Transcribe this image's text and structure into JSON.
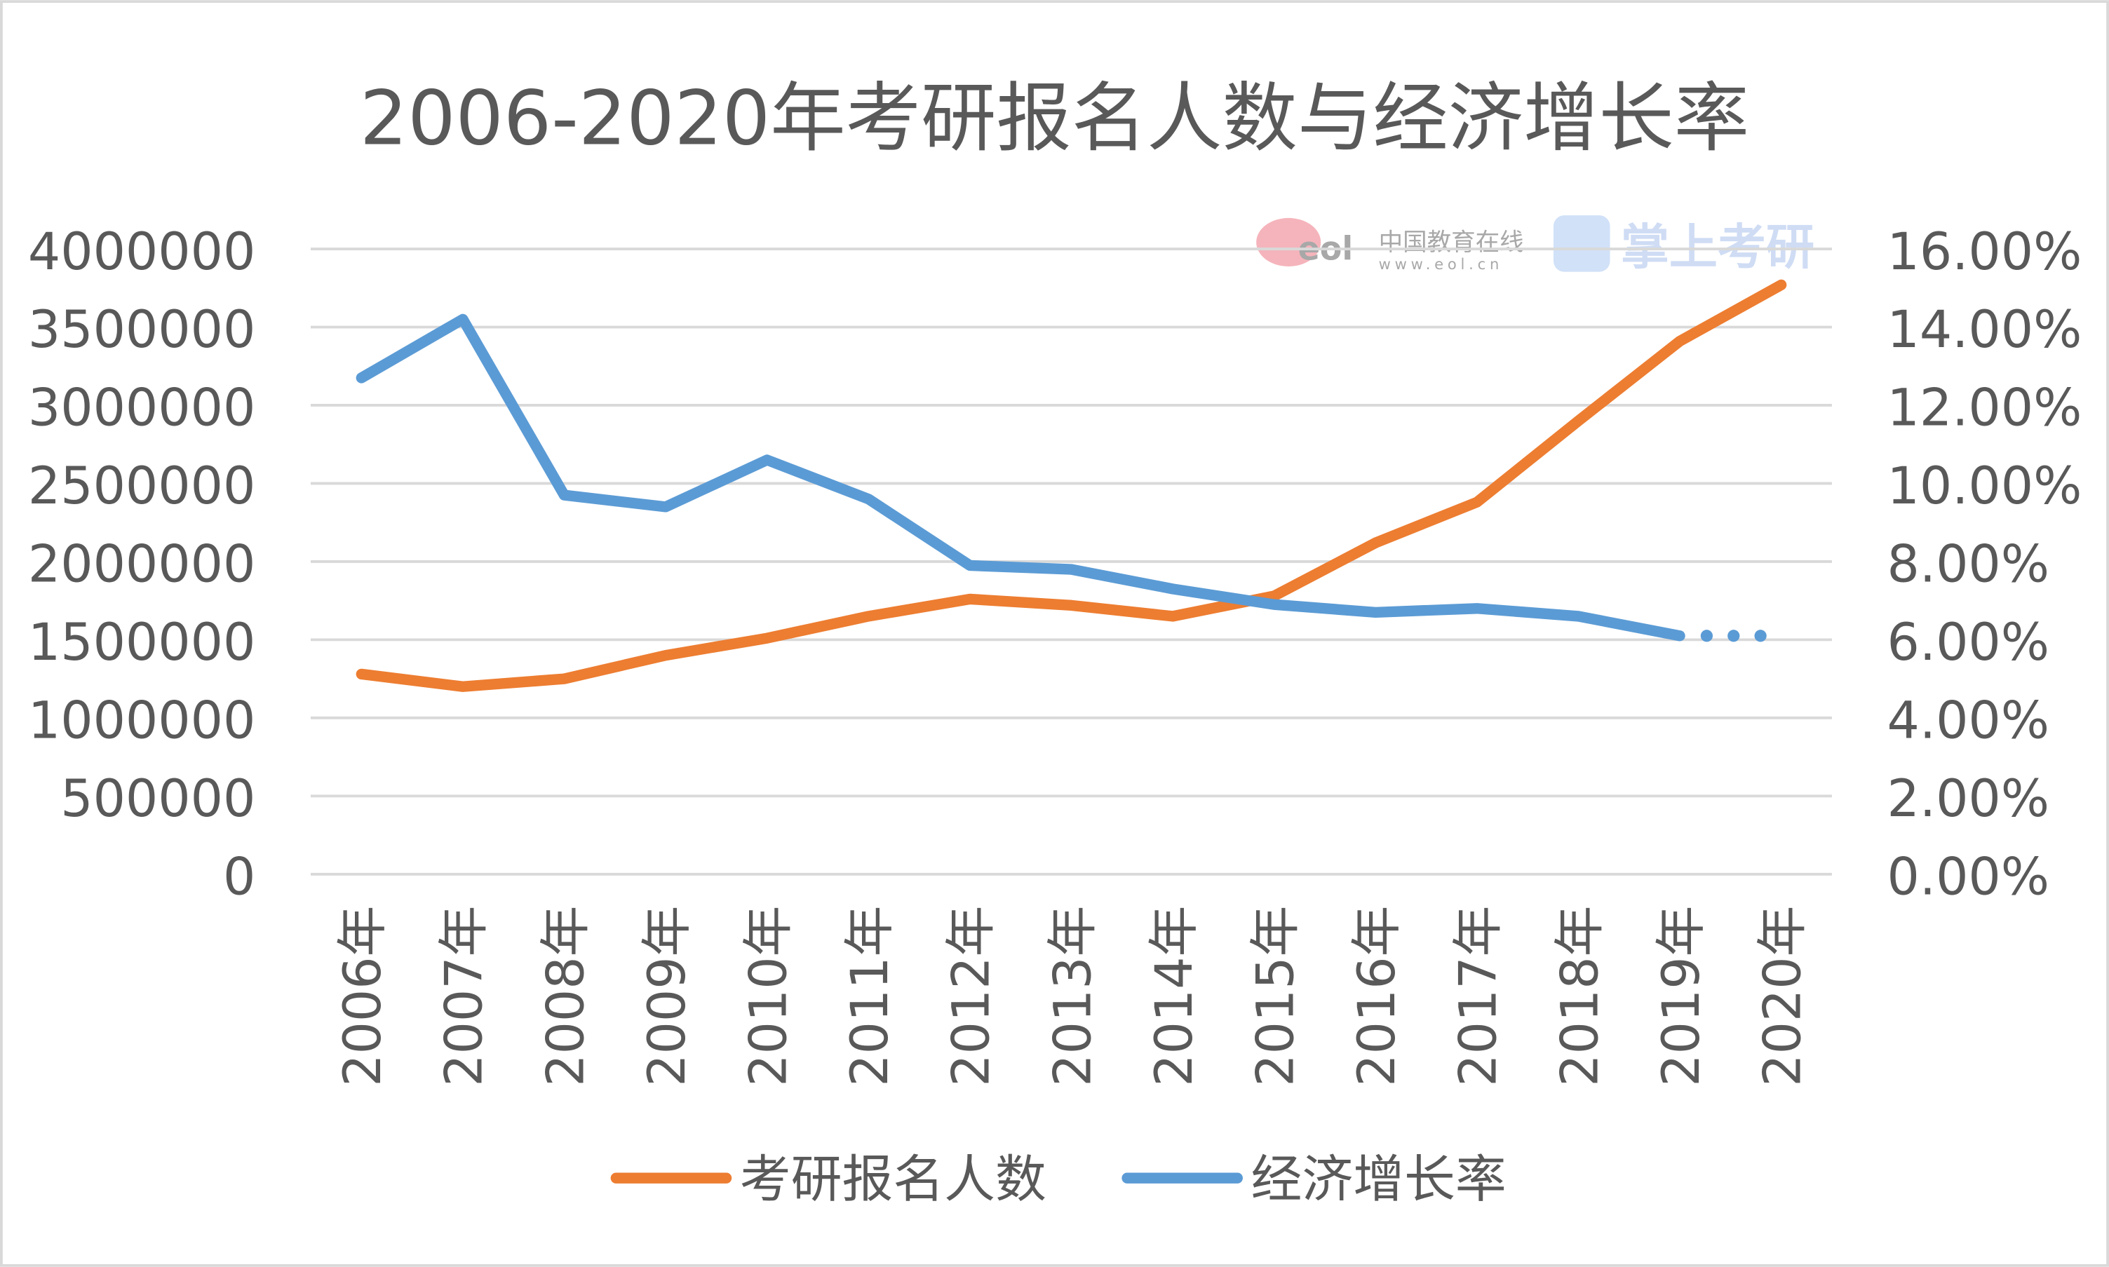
{
  "chart_data": {
    "type": "line",
    "title": "2006-2020年考研报名人数与经济增长率",
    "categories": [
      "2006年",
      "2007年",
      "2008年",
      "2009年",
      "2010年",
      "2011年",
      "2012年",
      "2013年",
      "2014年",
      "2015年",
      "2016年",
      "2017年",
      "2018年",
      "2019年",
      "2020年"
    ],
    "y_left": {
      "range": [
        0,
        4000000
      ],
      "ticks": [
        "0",
        "500000",
        "1000000",
        "1500000",
        "2000000",
        "2500000",
        "3000000",
        "3500000",
        "4000000"
      ]
    },
    "y_right": {
      "range": [
        0,
        0.16
      ],
      "ticks": [
        "0.00%",
        "2.00%",
        "4.00%",
        "6.00%",
        "8.00%",
        "10.00%",
        "12.00%",
        "14.00%",
        "16.00%"
      ]
    },
    "grid": true,
    "legend_placement": "bottom",
    "series": [
      {
        "name": "考研报名人数",
        "axis": "left",
        "color": "#ED7D31",
        "values": [
          1280000,
          1200000,
          1250000,
          1400000,
          1510000,
          1650000,
          1760000,
          1720000,
          1650000,
          1780000,
          2120000,
          2380000,
          2900000,
          3410000,
          3770000
        ]
      },
      {
        "name": "经济增长率",
        "axis": "right",
        "color": "#5B9BD5",
        "values": [
          0.127,
          0.142,
          0.097,
          0.094,
          0.106,
          0.096,
          0.079,
          0.078,
          0.073,
          0.069,
          0.067,
          0.068,
          0.066,
          0.061,
          null
        ],
        "dotted_extension_value": 0.061
      }
    ]
  },
  "watermark": {
    "text": "中国教育在线",
    "url_text": "www.eol.cn",
    "brand": "掌上考研",
    "logo_text": "eol"
  }
}
